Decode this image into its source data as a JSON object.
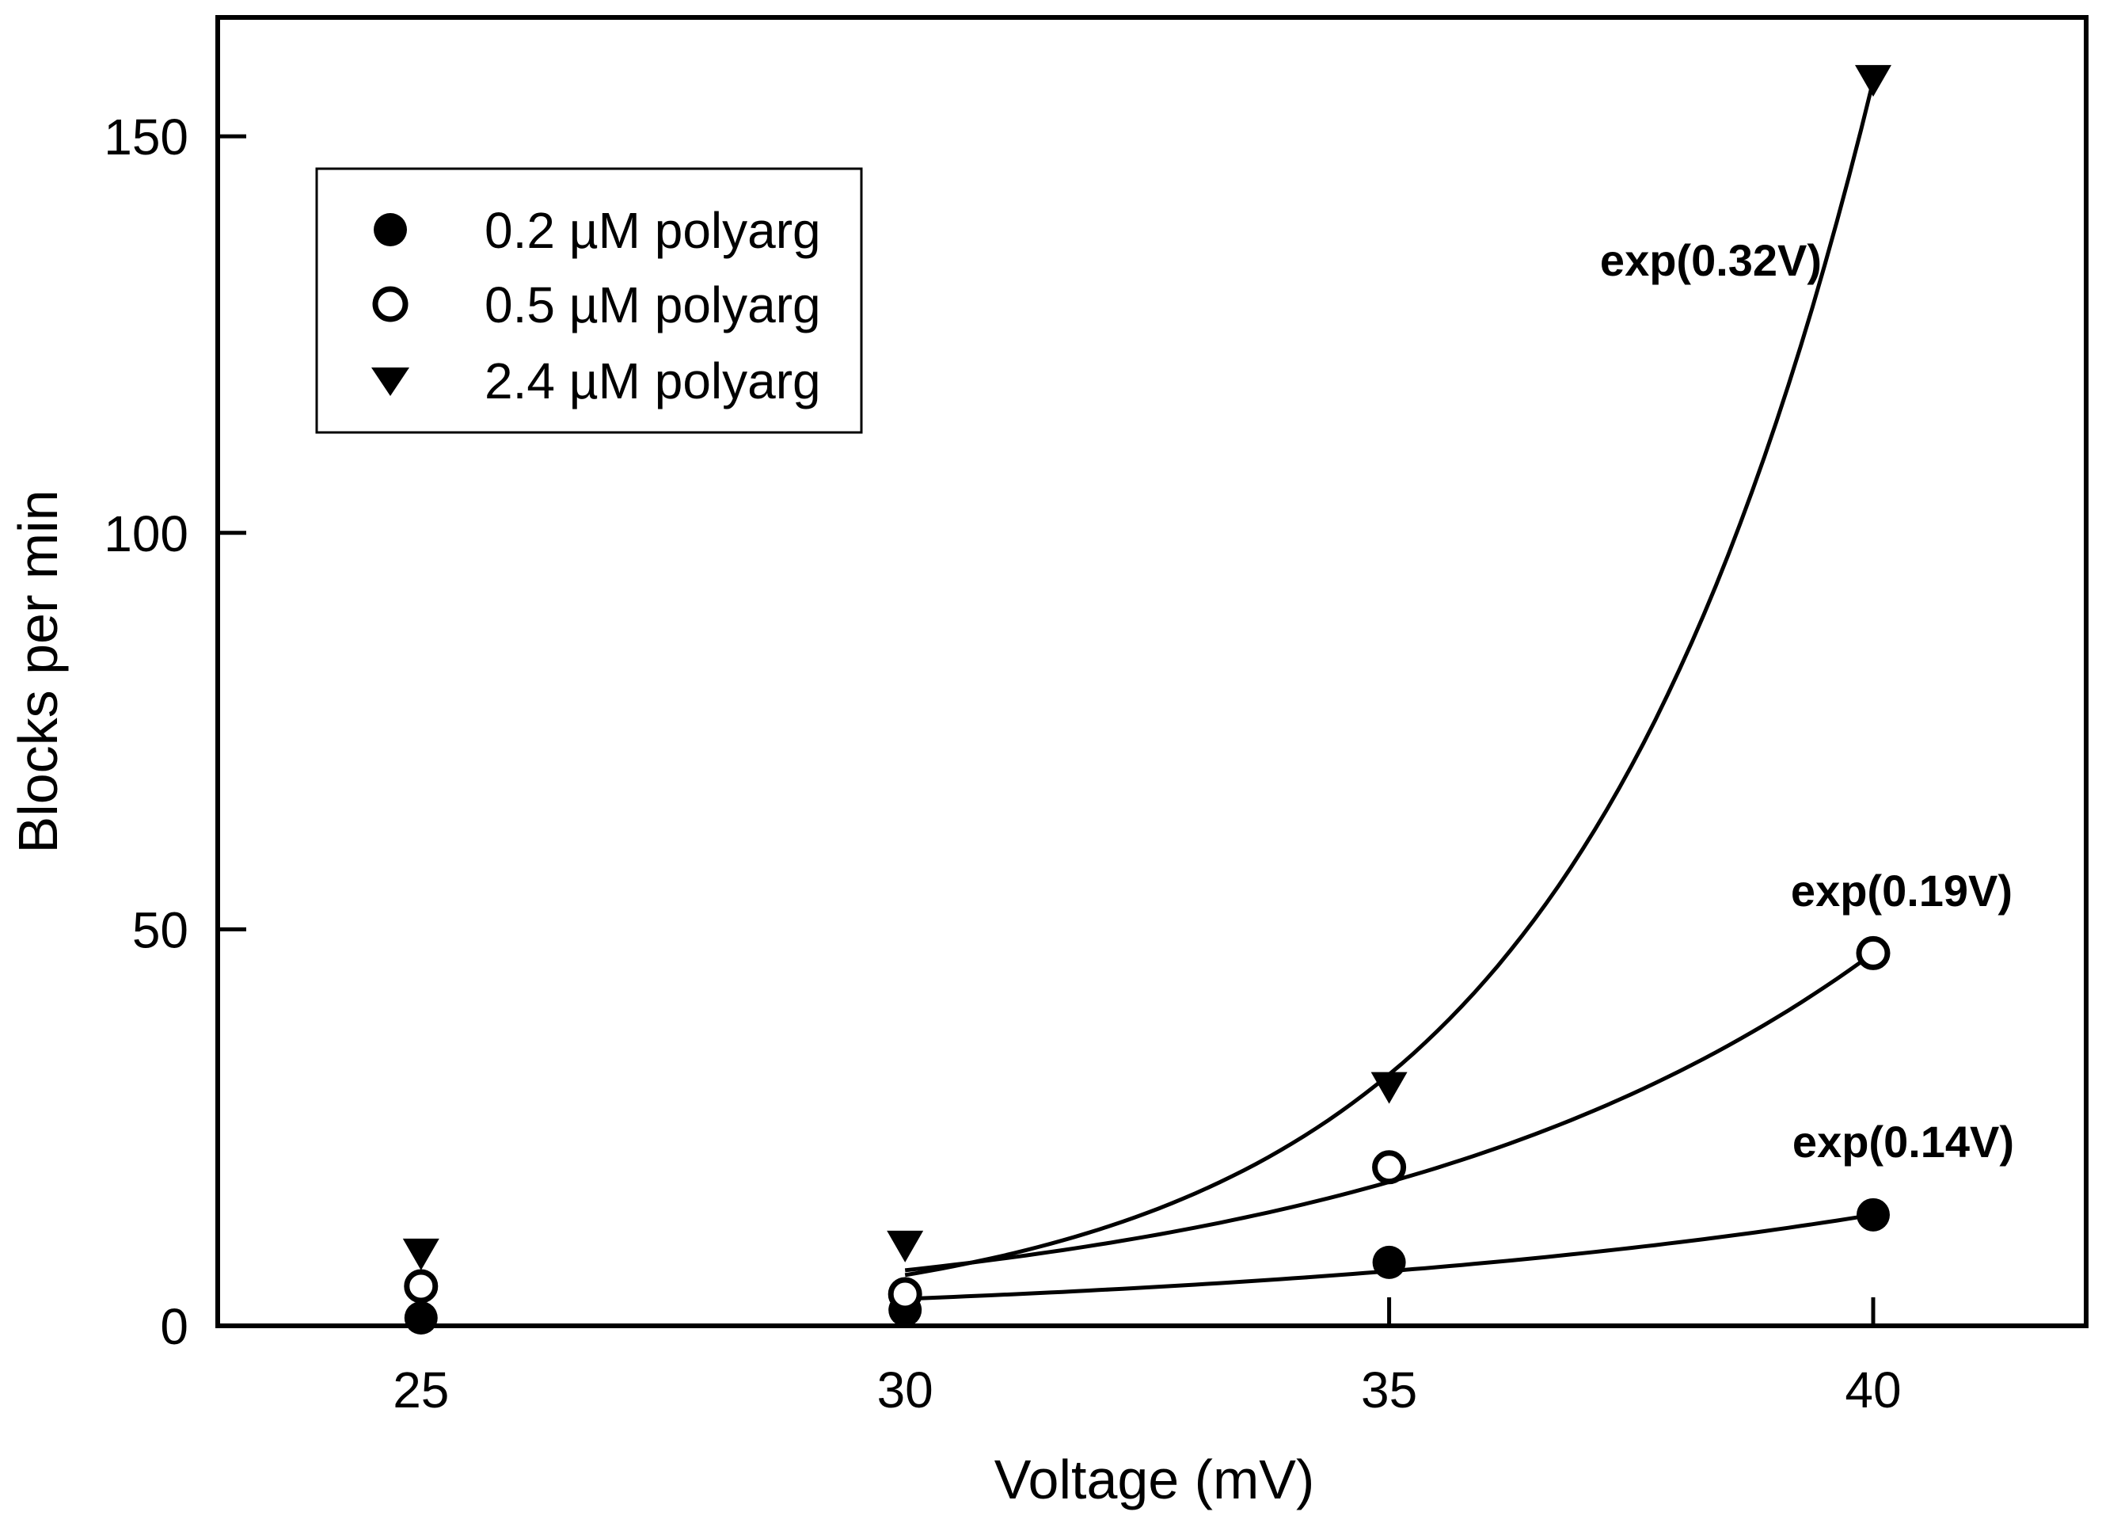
{
  "chart_data": {
    "type": "scatter",
    "title": "",
    "xlabel": "Voltage (mV)",
    "ylabel": "Blocks per min",
    "xlim": [
      22.9,
      42.2
    ],
    "ylim": [
      0,
      165
    ],
    "xticks": [
      25,
      30,
      35,
      40
    ],
    "yticks": [
      0,
      50,
      100,
      150
    ],
    "xtick_labels": [
      "25",
      "30",
      "35",
      "40"
    ],
    "ytick_labels": [
      "0",
      "50",
      "100",
      "150"
    ],
    "grid": false,
    "legend_position": "top-left",
    "series": [
      {
        "name": "0.2 µM polyarg",
        "marker": "filled-circle",
        "points": [
          {
            "x": 25,
            "y": 1
          },
          {
            "x": 30,
            "y": 2
          },
          {
            "x": 35,
            "y": 8
          },
          {
            "x": 40,
            "y": 14
          }
        ],
        "fit": {
          "label": "exp(0.14V)",
          "rate": 0.14,
          "x_start": 30,
          "x_end": 40,
          "y_start": 3.4,
          "y_end": 14
        }
      },
      {
        "name": "0.5 µM polyarg",
        "marker": "open-circle",
        "points": [
          {
            "x": 25,
            "y": 5
          },
          {
            "x": 30,
            "y": 4
          },
          {
            "x": 35,
            "y": 20
          },
          {
            "x": 40,
            "y": 47
          }
        ],
        "fit": {
          "label": "exp(0.19V)",
          "rate": 0.19,
          "x_start": 30,
          "x_end": 40,
          "y_start": 7,
          "y_end": 47
        }
      },
      {
        "name": "2.4 µM polyarg",
        "marker": "filled-triangle-down",
        "points": [
          {
            "x": 25,
            "y": 9
          },
          {
            "x": 30,
            "y": 10
          },
          {
            "x": 35,
            "y": 30
          },
          {
            "x": 40,
            "y": 157
          }
        ],
        "fit": {
          "label": "exp(0.32V)",
          "rate": 0.32,
          "x_start": 30,
          "x_end": 40,
          "y_start": 6.4,
          "y_end": 157
        }
      }
    ]
  }
}
